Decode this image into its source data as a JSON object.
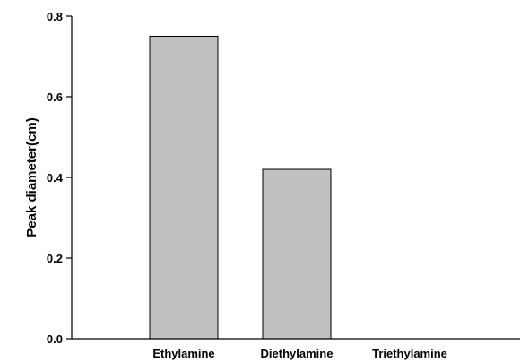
{
  "chart_data": {
    "type": "bar",
    "title": "",
    "xlabel": "",
    "ylabel": "Peak diameter(cm)",
    "categories": [
      "Ethylamine",
      "Diethylamine",
      "Triethylamine"
    ],
    "values": [
      0.75,
      0.42,
      0.0
    ],
    "ylim": [
      0.0,
      0.8
    ],
    "yticks": [
      "0.0",
      "0.2",
      "0.4",
      "0.6",
      "0.8"
    ],
    "grid": false,
    "colors": {
      "bar_fill": "#c0c0c0",
      "bar_stroke": "#000000",
      "axis": "#000000"
    }
  }
}
